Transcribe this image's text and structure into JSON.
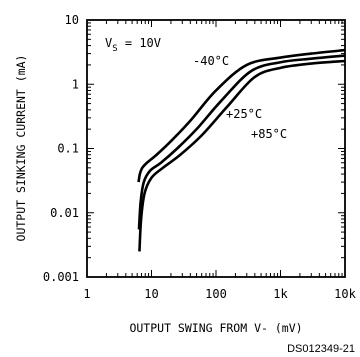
{
  "chart_data": {
    "type": "line",
    "xscale": "log",
    "yscale": "log",
    "xlim": [
      1,
      10000
    ],
    "ylim": [
      0.001,
      10
    ],
    "xlabel": "OUTPUT SWING FROM V- (mV)",
    "ylabel": "OUTPUT SINKING CURRENT (mA)",
    "x_ticks": [
      {
        "value": 1,
        "label": "1"
      },
      {
        "value": 10,
        "label": "10"
      },
      {
        "value": 100,
        "label": "100"
      },
      {
        "value": 1000,
        "label": "1k"
      },
      {
        "value": 10000,
        "label": "10k"
      }
    ],
    "y_ticks": [
      {
        "value": 0.001,
        "label": "0.001"
      },
      {
        "value": 0.01,
        "label": "0.01"
      },
      {
        "value": 0.1,
        "label": "0.1"
      },
      {
        "value": 1,
        "label": "1"
      },
      {
        "value": 10,
        "label": "10"
      }
    ],
    "condition": {
      "main": "V",
      "sub": "S",
      "rest": " = 10V"
    },
    "series": [
      {
        "name": "-40°C",
        "x": [
          6.3,
          6.6,
          7.2,
          8.5,
          12,
          20,
          40,
          100,
          300,
          1000,
          3000,
          10000
        ],
        "y": [
          0.03,
          0.04,
          0.05,
          0.06,
          0.08,
          0.13,
          0.27,
          0.8,
          2.0,
          2.6,
          3.0,
          3.4
        ]
      },
      {
        "name": "+25°C",
        "x": [
          6.4,
          6.8,
          7.6,
          9.5,
          14,
          25,
          50,
          120,
          350,
          1000,
          3000,
          10000
        ],
        "y": [
          0.0055,
          0.015,
          0.03,
          0.045,
          0.06,
          0.1,
          0.2,
          0.55,
          1.6,
          2.2,
          2.5,
          2.8
        ]
      },
      {
        "name": "+85°C",
        "x": [
          6.5,
          6.9,
          7.8,
          10,
          15,
          28,
          60,
          150,
          400,
          1000,
          3000,
          10000
        ],
        "y": [
          0.0025,
          0.008,
          0.02,
          0.035,
          0.05,
          0.08,
          0.16,
          0.45,
          1.3,
          1.8,
          2.1,
          2.3
        ]
      }
    ],
    "annotations": [
      "-40°C",
      "+25°C",
      "+85°C"
    ]
  },
  "figure_id": "DS012349-21"
}
